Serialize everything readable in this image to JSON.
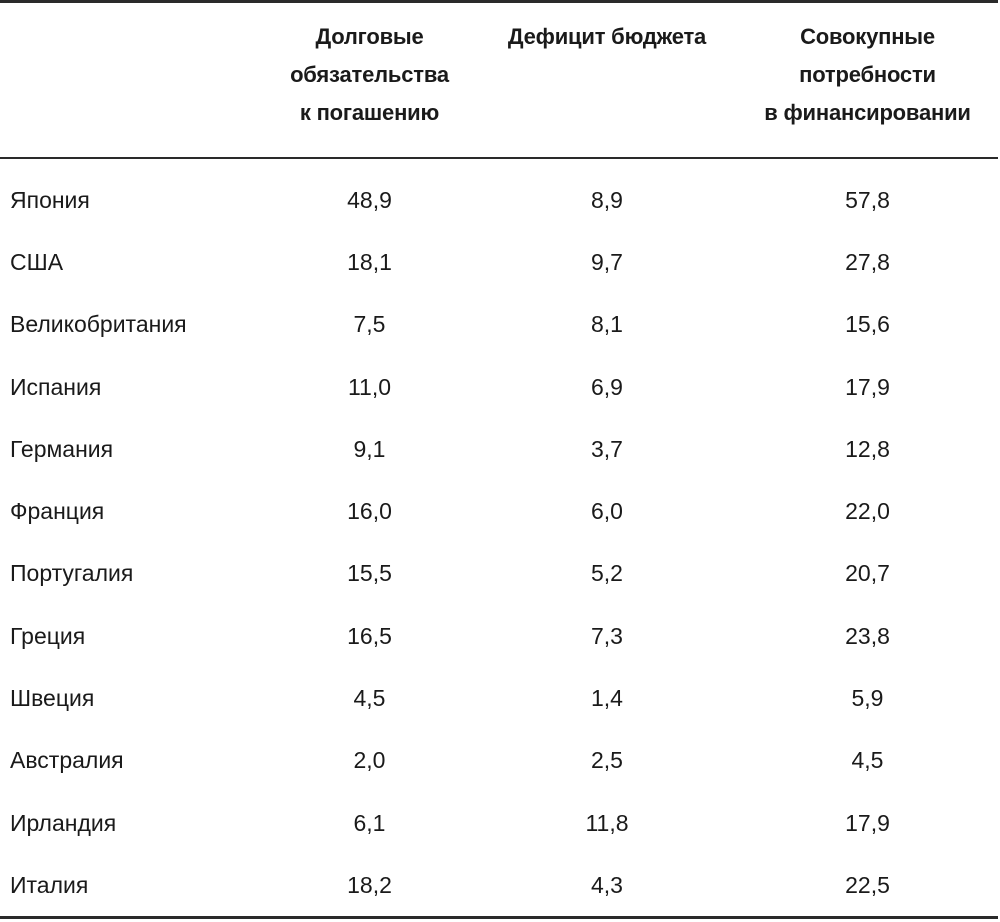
{
  "chart_data": {
    "type": "table",
    "columns": [
      "",
      "Долговые обязательства к погашению",
      "Дефицит бюджета",
      "Совокупные потребности в финансировании"
    ],
    "header_lines": [
      [],
      [
        "Долговые",
        "обязательства",
        "к погашению"
      ],
      [
        "Дефицит бюджета"
      ],
      [
        "Совокупные",
        "потребности",
        "в финансировании"
      ]
    ],
    "rows": [
      {
        "country": "Япония",
        "values": [
          "48,9",
          "8,9",
          "57,8"
        ]
      },
      {
        "country": "США",
        "values": [
          "18,1",
          "9,7",
          "27,8"
        ]
      },
      {
        "country": "Великобритания",
        "values": [
          "7,5",
          "8,1",
          "15,6"
        ]
      },
      {
        "country": "Испания",
        "values": [
          "11,0",
          "6,9",
          "17,9"
        ]
      },
      {
        "country": "Германия",
        "values": [
          "9,1",
          "3,7",
          "12,8"
        ]
      },
      {
        "country": "Франция",
        "values": [
          "16,0",
          "6,0",
          "22,0"
        ]
      },
      {
        "country": "Португалия",
        "values": [
          "15,5",
          "5,2",
          "20,7"
        ]
      },
      {
        "country": "Греция",
        "values": [
          "16,5",
          "7,3",
          "23,8"
        ]
      },
      {
        "country": "Швеция",
        "values": [
          "4,5",
          "1,4",
          "5,9"
        ]
      },
      {
        "country": "Австралия",
        "values": [
          "2,0",
          "2,5",
          "4,5"
        ]
      },
      {
        "country": "Ирландия",
        "values": [
          "6,1",
          "11,8",
          "17,9"
        ]
      },
      {
        "country": "Италия",
        "values": [
          "18,2",
          "4,3",
          "22,5"
        ]
      }
    ]
  }
}
